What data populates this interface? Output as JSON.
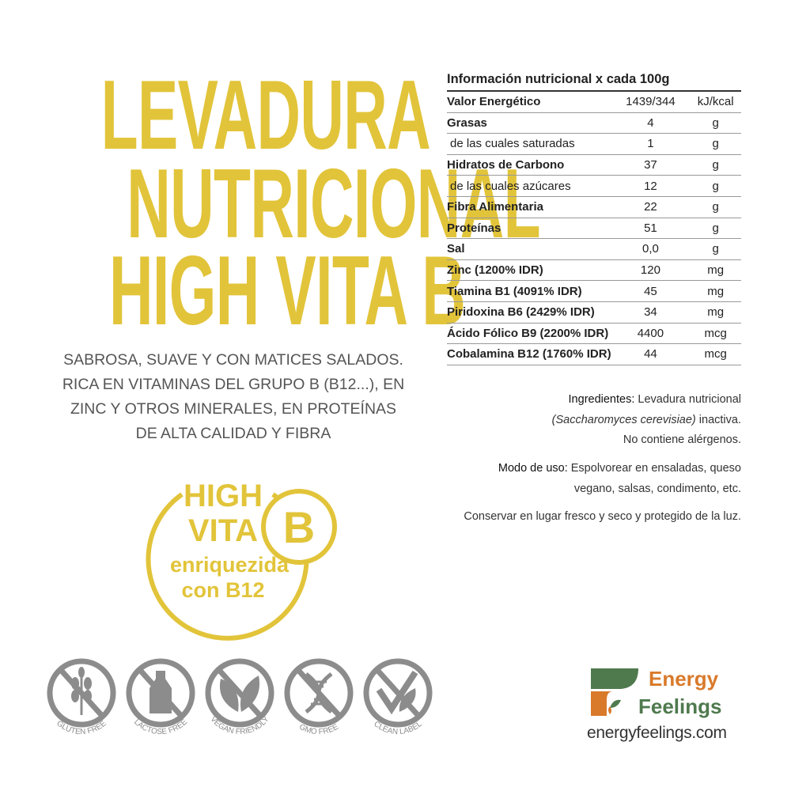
{
  "title": {
    "lines": [
      "LEVADURA",
      "NUTRICIONAL",
      "HIGH VITA B"
    ]
  },
  "description": {
    "lines": [
      "SABROSA, SUAVE Y CON MATICES SALADOS.",
      "RICA EN VITAMINAS DEL GRUPO B (B12...), EN",
      "ZINC Y OTROS MINERALES, EN PROTEÍNAS",
      "DE ALTA CALIDAD Y FIBRA"
    ]
  },
  "badge": {
    "line1": "HIGH",
    "line2": "VITA",
    "letter": "B",
    "line3": "enriquezida",
    "line4": "con B12",
    "color": "#E2C43A"
  },
  "nutrition": {
    "header": "Información nutricional x cada 100g",
    "rows": [
      {
        "label": "Valor Energético",
        "value": "1439/344",
        "unit": "kJ/kcal"
      },
      {
        "label": "Grasas",
        "value": "4",
        "unit": "g"
      },
      {
        "label": "de las cuales saturadas",
        "value": "1",
        "unit": "g"
      },
      {
        "label": "Hidratos de Carbono",
        "value": "37",
        "unit": "g"
      },
      {
        "label": "de las cuales azúcares",
        "value": "12",
        "unit": "g"
      },
      {
        "label": "Fibra Alimentaria",
        "value": "22",
        "unit": "g"
      },
      {
        "label": "Proteínas",
        "value": "51",
        "unit": "g"
      },
      {
        "label": "Sal",
        "value": "0,0",
        "unit": "g"
      },
      {
        "label": "Zinc (1200% IDR)",
        "value": "120",
        "unit": "mg"
      },
      {
        "label": "Tiamina B1 (4091% IDR)",
        "value": "45",
        "unit": "mg"
      },
      {
        "label": "Piridoxina B6 (2429% IDR)",
        "value": "34",
        "unit": "mg"
      },
      {
        "label": "Ácido Fólico B9 (2200% IDR)",
        "value": "4400",
        "unit": "mcg"
      },
      {
        "label": "Cobalamina B12 (1760% IDR)",
        "value": "44",
        "unit": "mcg"
      }
    ]
  },
  "ingredients": {
    "label": "Ingredientes:",
    "text1": "Levadura nutricional",
    "italic": "(Saccharomyces cerevisiae)",
    "text2": "inactiva.",
    "text3": "No contiene alérgenos."
  },
  "usage": {
    "label": "Modo de uso:",
    "text1": "Espolvorear en ensaladas, queso",
    "text2": "vegano, salsas, condimento, etc."
  },
  "storage": "Conservar en lugar fresco y seco y protegido de la luz.",
  "icons": [
    {
      "icon": "wheat-icon",
      "label": "GLUTEN FREE"
    },
    {
      "icon": "bottle-icon",
      "label": "LACTOSE FREE"
    },
    {
      "icon": "leaf-icon",
      "label": "VEGAN FRIENDLY"
    },
    {
      "icon": "dna-icon",
      "label": "GMO FREE"
    },
    {
      "icon": "check-leaf-icon",
      "label": "CLEAN LABEL"
    }
  ],
  "icon_color": "#8C8C8C",
  "brand": {
    "word1": "Energy",
    "word2": "Feelings",
    "url": "energyfeelings.com",
    "green": "#4F7A4E",
    "orange": "#D97A2B"
  }
}
